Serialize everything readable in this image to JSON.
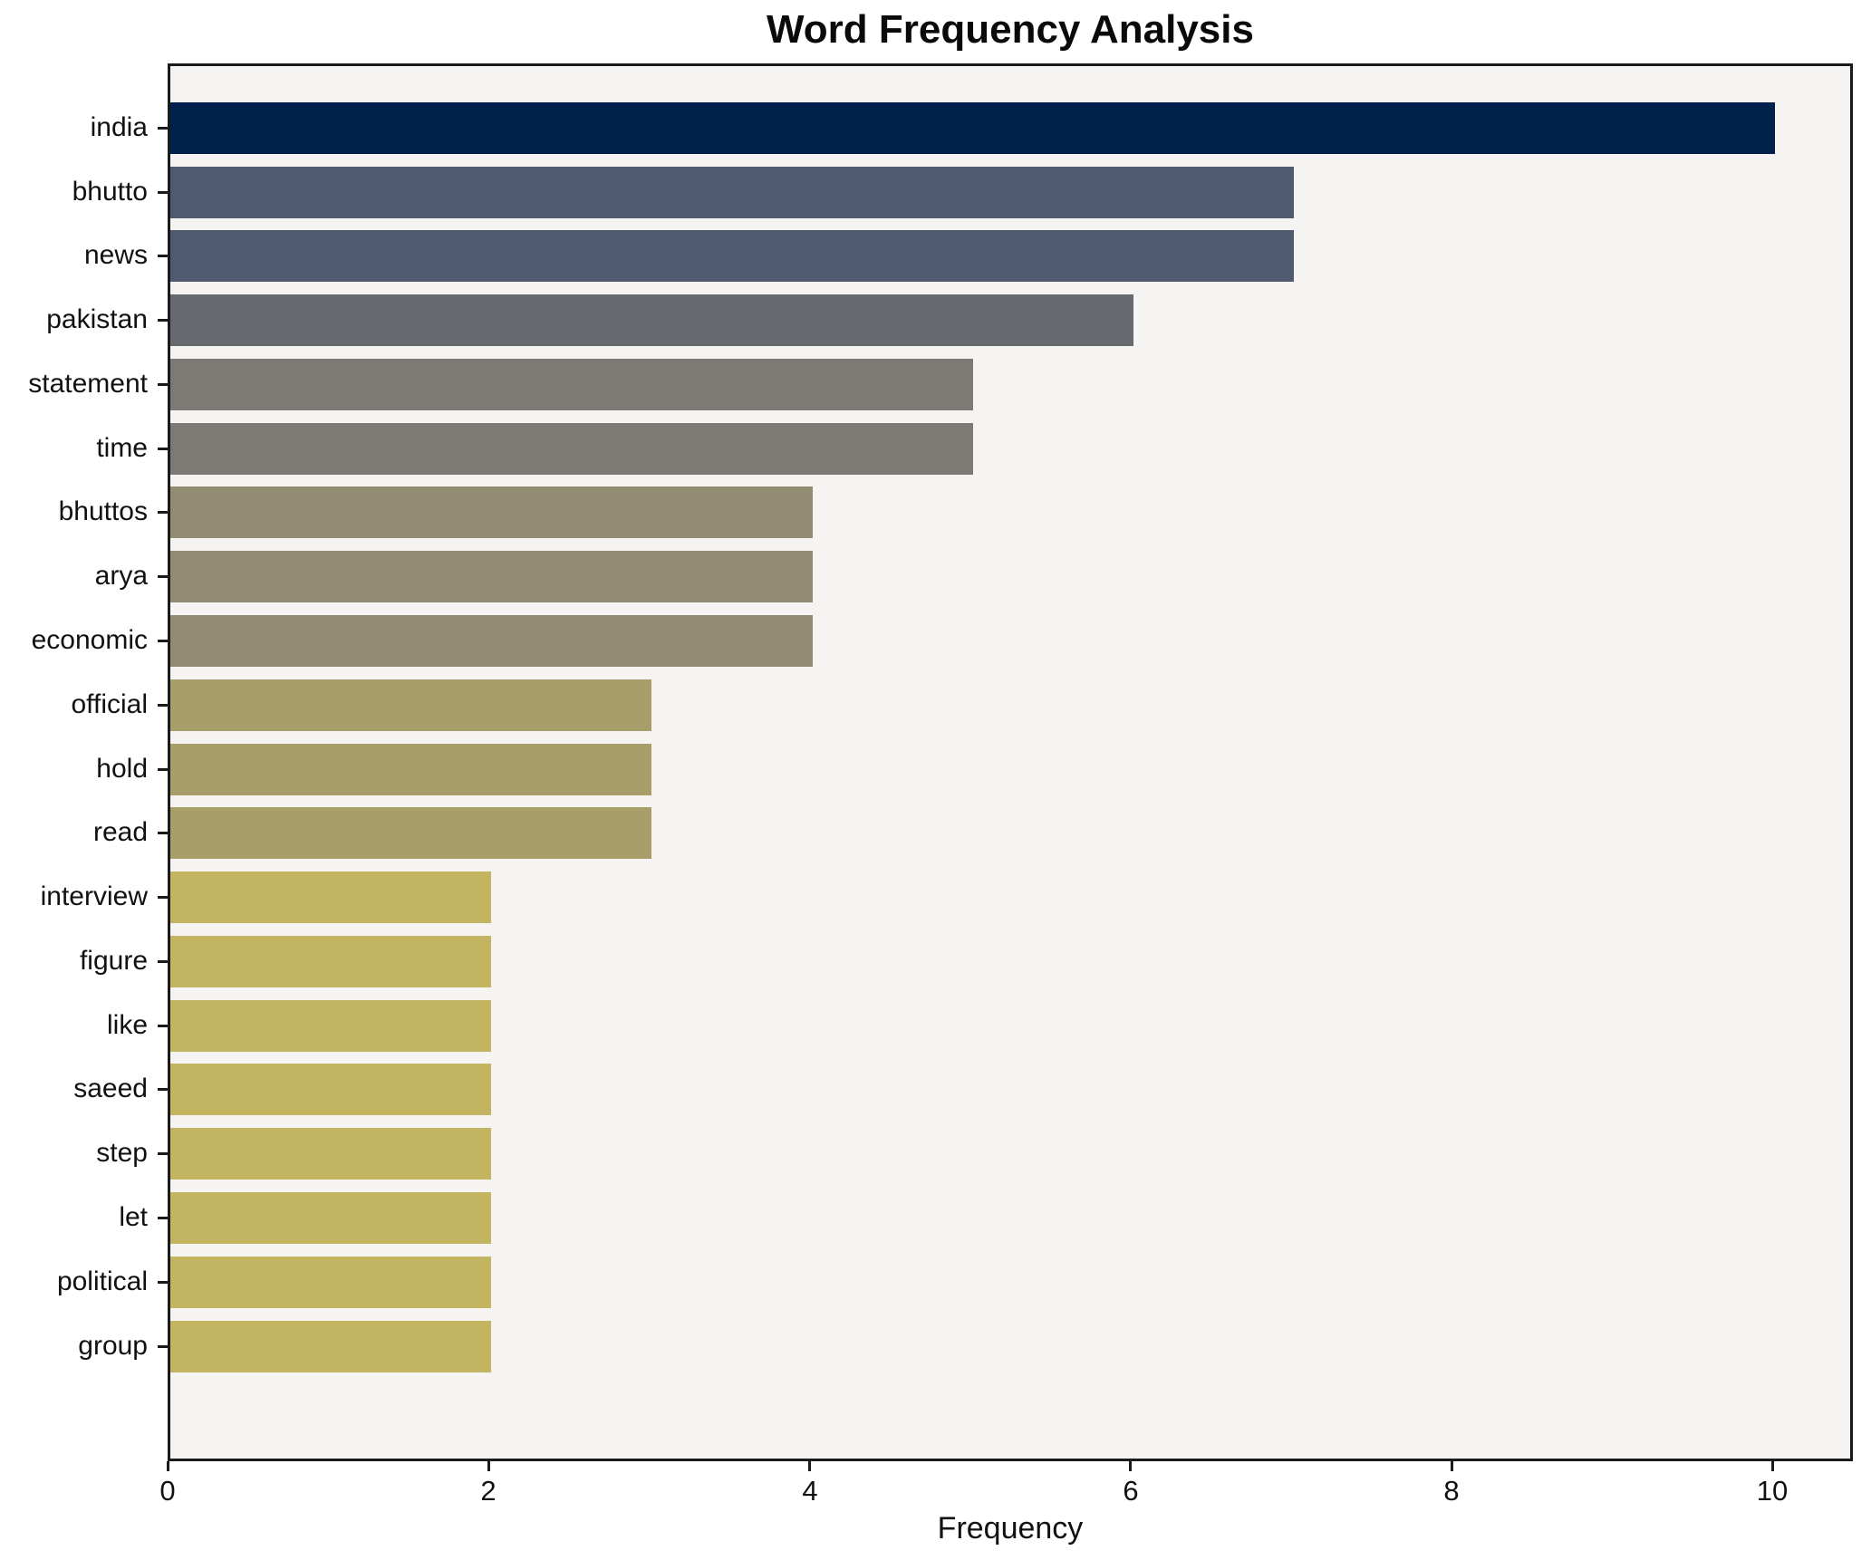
{
  "chart_data": {
    "type": "bar",
    "orientation": "horizontal",
    "title": "Word Frequency Analysis",
    "xlabel": "Frequency",
    "ylabel": "",
    "categories": [
      "india",
      "bhutto",
      "news",
      "pakistan",
      "statement",
      "time",
      "bhuttos",
      "arya",
      "economic",
      "official",
      "hold",
      "read",
      "interview",
      "figure",
      "like",
      "saeed",
      "step",
      "let",
      "political",
      "group"
    ],
    "values": [
      10,
      7,
      7,
      6,
      5,
      5,
      4,
      4,
      4,
      3,
      3,
      3,
      2,
      2,
      2,
      2,
      2,
      2,
      2,
      2
    ],
    "bar_colors": [
      "#00214c",
      "#505a71",
      "#505a71",
      "#66696f",
      "#7b7a74",
      "#7b7a74",
      "#928c72",
      "#928c72",
      "#928c72",
      "#a89e6a",
      "#a89e6a",
      "#a89e6a",
      "#c3b461",
      "#c3b461",
      "#c3b461",
      "#c3b461",
      "#c3b461",
      "#c3b461",
      "#c3b461",
      "#c3b461"
    ],
    "xlim": [
      0,
      10.5
    ],
    "xticks": [
      0,
      2,
      4,
      6,
      8,
      10
    ],
    "grid": false,
    "legend_position": "none",
    "plot_background": "#f5f4f2",
    "spine_color": "#1a1a1a",
    "colormap": "cividis-by-value"
  }
}
